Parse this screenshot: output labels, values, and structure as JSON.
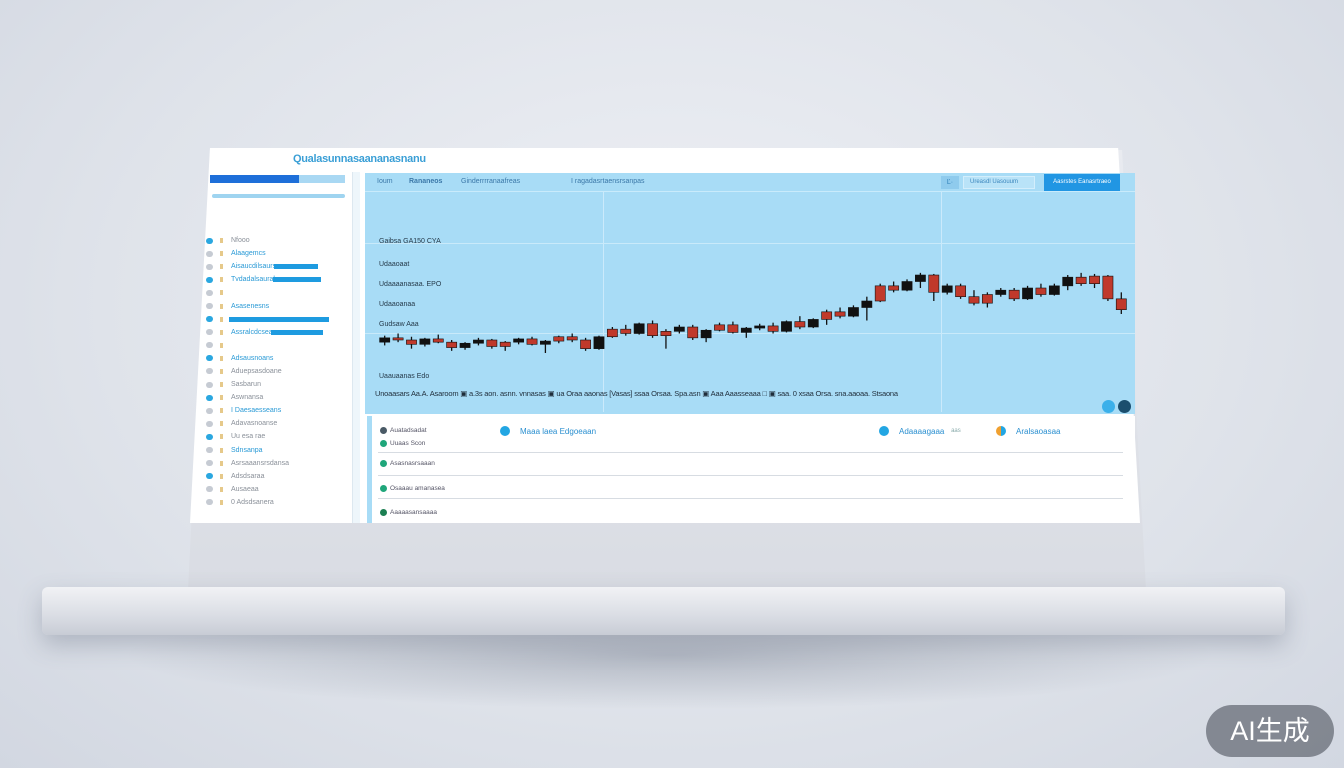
{
  "title": "Qualasunnasaananasnanu",
  "sidebar": {
    "items": [
      {
        "label": "Nfooo",
        "style": "gray"
      },
      {
        "label": "Alaagemcs",
        "style": "blue"
      },
      {
        "label": "Aisaucdilsaurs",
        "style": "blue",
        "bar": true
      },
      {
        "label": "Tvdadalsaural",
        "style": "blue",
        "bar": true
      },
      {
        "label": "",
        "style": "gray"
      },
      {
        "label": "Asasenesns",
        "style": "blue"
      },
      {
        "label": "",
        "style": "blue",
        "bar": true
      },
      {
        "label": "Assralcdcsea",
        "style": "blue",
        "bar": true
      },
      {
        "label": "",
        "style": "gray"
      },
      {
        "label": "Adsausnoans",
        "style": "blue"
      },
      {
        "label": "Aduepsasdoane",
        "style": "gray"
      },
      {
        "label": "Sasbarun",
        "style": "gray"
      },
      {
        "label": "Aswnansa",
        "style": "gray"
      },
      {
        "label": "I Daesaesseans",
        "style": "blue"
      },
      {
        "label": "Adavasnoanse",
        "style": "gray"
      },
      {
        "label": "Uu esa rae",
        "style": "gray"
      },
      {
        "label": "Sdnsanpa",
        "style": "blue"
      },
      {
        "label": "Asrsaaansrsdansa",
        "style": "gray"
      },
      {
        "label": "Adsdsaraa",
        "style": "gray"
      },
      {
        "label": "Ausaeaa",
        "style": "gray"
      },
      {
        "label": "0 Adsdsanera",
        "style": "gray"
      }
    ]
  },
  "toolbar": {
    "tabs": [
      "Ioum",
      "Rananeos",
      "Ginderrrranaafreas",
      "I ragadasrtaensrsanpas"
    ],
    "icon_button": "Ľ·",
    "secondary_button": "Ureasdl Uasouum",
    "primary_button": "Aasrstes Eanasrtraeo"
  },
  "chart_labels": [
    "Gaibsa GA150 CYA",
    "Udaaoaat",
    "Udaaaanasaa. EPO",
    "Udaaoanaa",
    "Gudsaw Aaa",
    "Uaauaanas Edo"
  ],
  "ticker": "Unoaasars Aa.A. Asaroom ▣ a.3s aon. asnn. vnnasas ▣ ua Oraa aaonas [Vasas] ssaa Orsaa. Spa.asn ▣ Aaa Aaasseaaa □ ▣ saa. 0 xsaa Orsa. sna.aaoaa. Stsaona",
  "bottom": {
    "rows": [
      "Auatadsadat",
      "Uuaas Scon",
      "Asasnasrsaaan",
      "Osaaau amanasea",
      "Aaaaasansaaaa"
    ],
    "center_link": "Maaa laea Edgoeaan",
    "right_link1": "Adaaaagaaa",
    "right_link1_suffix": "aas",
    "right_link2": "Aralsaoasaa"
  },
  "colors": {
    "accent": "#2196e3",
    "chart_bg": "#a8dcf6",
    "candle_up": "#111111",
    "candle_down": "#c0392b"
  },
  "watermark": "AI生成",
  "chart_data": {
    "type": "candlestick",
    "ohlc": [
      [
        58,
        64,
        55,
        62
      ],
      [
        62,
        66,
        58,
        60
      ],
      [
        60,
        63,
        52,
        56
      ],
      [
        56,
        62,
        54,
        61
      ],
      [
        61,
        65,
        57,
        58
      ],
      [
        58,
        60,
        50,
        53
      ],
      [
        53,
        58,
        51,
        57
      ],
      [
        57,
        62,
        55,
        60
      ],
      [
        60,
        61,
        52,
        54
      ],
      [
        54,
        59,
        50,
        58
      ],
      [
        58,
        62,
        56,
        61
      ],
      [
        61,
        63,
        55,
        56
      ],
      [
        56,
        60,
        48,
        59
      ],
      [
        59,
        64,
        57,
        63
      ],
      [
        63,
        66,
        58,
        60
      ],
      [
        60,
        62,
        50,
        52
      ],
      [
        52,
        64,
        51,
        63
      ],
      [
        63,
        72,
        62,
        70
      ],
      [
        70,
        74,
        64,
        66
      ],
      [
        66,
        76,
        65,
        75
      ],
      [
        75,
        78,
        62,
        64
      ],
      [
        64,
        70,
        52,
        68
      ],
      [
        68,
        74,
        66,
        72
      ],
      [
        72,
        74,
        60,
        62
      ],
      [
        62,
        70,
        58,
        69
      ],
      [
        69,
        76,
        68,
        74
      ],
      [
        74,
        77,
        66,
        67
      ],
      [
        67,
        72,
        62,
        71
      ],
      [
        71,
        75,
        69,
        73
      ],
      [
        73,
        76,
        66,
        68
      ],
      [
        68,
        78,
        67,
        77
      ],
      [
        77,
        82,
        70,
        72
      ],
      [
        72,
        80,
        71,
        79
      ],
      [
        79,
        88,
        74,
        86
      ],
      [
        86,
        90,
        80,
        82
      ],
      [
        82,
        92,
        81,
        90
      ],
      [
        90,
        100,
        78,
        96
      ],
      [
        96,
        112,
        95,
        110
      ],
      [
        110,
        114,
        104,
        106
      ],
      [
        106,
        116,
        105,
        114
      ],
      [
        114,
        122,
        108,
        120
      ],
      [
        120,
        121,
        96,
        104
      ],
      [
        104,
        112,
        102,
        110
      ],
      [
        110,
        112,
        98,
        100
      ],
      [
        100,
        106,
        92,
        94
      ],
      [
        94,
        104,
        90,
        102
      ],
      [
        102,
        108,
        100,
        106
      ],
      [
        106,
        108,
        96,
        98
      ],
      [
        98,
        110,
        97,
        108
      ],
      [
        108,
        112,
        100,
        102
      ],
      [
        102,
        112,
        101,
        110
      ],
      [
        110,
        120,
        106,
        118
      ],
      [
        118,
        122,
        110,
        112
      ],
      [
        112,
        121,
        108,
        119
      ],
      [
        119,
        120,
        96,
        98
      ],
      [
        98,
        104,
        84,
        88
      ]
    ],
    "grid": true
  }
}
